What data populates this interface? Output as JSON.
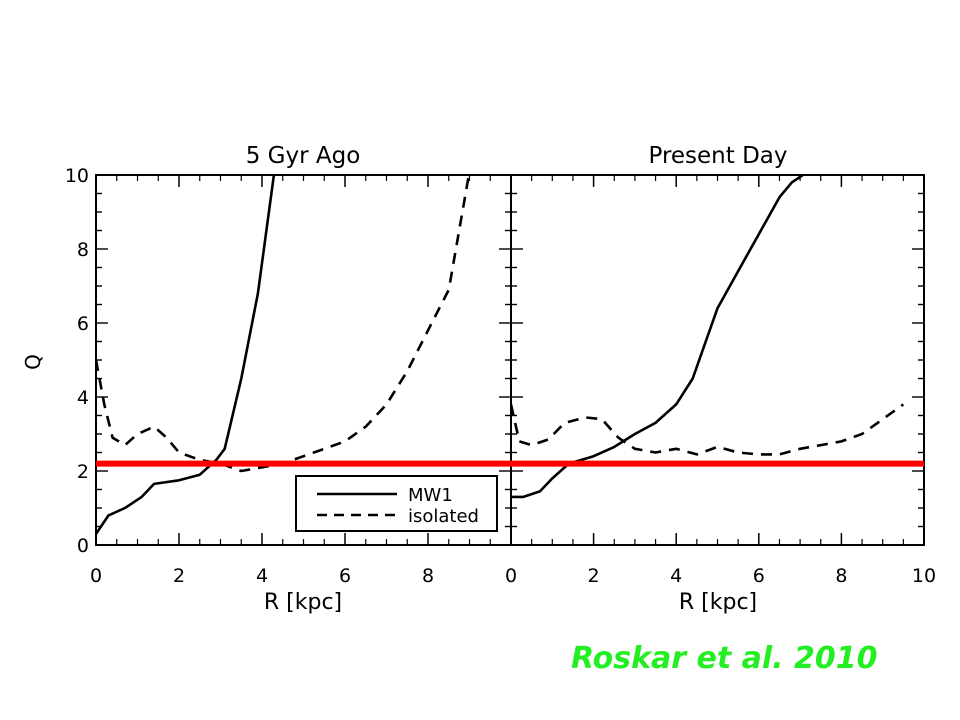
{
  "chart_data": [
    {
      "type": "line",
      "title": "5 Gyr Ago",
      "xlabel": "R [kpc]",
      "ylabel": "Q",
      "xlim": [
        0,
        10
      ],
      "ylim": [
        0,
        10
      ],
      "xticks": [
        "0",
        "2",
        "4",
        "6",
        "8"
      ],
      "yticks": [
        "0",
        "2",
        "4",
        "6",
        "8",
        "10"
      ],
      "reference_line": {
        "y": 2.2,
        "color": "#ff0000"
      },
      "legend": {
        "placement": "bottom-right",
        "entries": [
          "MW1",
          "isolated"
        ]
      },
      "series": [
        {
          "name": "MW1",
          "style": "solid",
          "x": [
            0.0,
            0.3,
            0.7,
            1.1,
            1.4,
            2.0,
            2.5,
            2.9,
            3.1,
            3.5,
            3.9,
            4.3
          ],
          "y": [
            0.3,
            0.8,
            1.0,
            1.3,
            1.65,
            1.75,
            1.9,
            2.3,
            2.6,
            4.5,
            6.8,
            10.1
          ]
        },
        {
          "name": "isolated",
          "style": "dashed",
          "x": [
            0.0,
            0.2,
            0.4,
            0.7,
            1.0,
            1.4,
            1.7,
            2.0,
            2.5,
            3.0,
            3.5,
            4.0,
            4.5,
            5.0,
            5.5,
            6.0,
            6.5,
            7.0,
            7.5,
            8.0,
            8.5,
            9.0
          ],
          "y": [
            5.0,
            3.8,
            2.9,
            2.7,
            3.0,
            3.2,
            2.9,
            2.5,
            2.3,
            2.2,
            2.0,
            2.1,
            2.2,
            2.4,
            2.6,
            2.8,
            3.2,
            3.8,
            4.7,
            5.8,
            6.9,
            10.1
          ]
        }
      ]
    },
    {
      "type": "line",
      "title": "Present Day",
      "xlabel": "R [kpc]",
      "ylabel": "",
      "xlim": [
        0,
        10
      ],
      "ylim": [
        0,
        10
      ],
      "xticks": [
        "0",
        "2",
        "4",
        "6",
        "8",
        "10"
      ],
      "yticks": [],
      "reference_line": {
        "y": 2.2,
        "color": "#ff0000"
      },
      "series": [
        {
          "name": "MW1",
          "style": "solid",
          "x": [
            0.0,
            0.3,
            0.7,
            1.0,
            1.4,
            2.0,
            2.5,
            3.0,
            3.5,
            4.0,
            4.4,
            5.0,
            5.5,
            6.0,
            6.5,
            6.8,
            7.2,
            7.6
          ],
          "y": [
            1.3,
            1.3,
            1.45,
            1.8,
            2.2,
            2.4,
            2.65,
            3.0,
            3.3,
            3.8,
            4.5,
            6.4,
            7.4,
            8.4,
            9.4,
            9.8,
            10.1,
            10.1
          ]
        },
        {
          "name": "isolated",
          "style": "dashed",
          "x": [
            0.0,
            0.2,
            0.5,
            0.9,
            1.3,
            1.8,
            2.2,
            2.6,
            3.0,
            3.5,
            4.0,
            4.5,
            5.0,
            5.5,
            6.0,
            6.5,
            7.0,
            7.5,
            8.0,
            8.5,
            9.0,
            9.5
          ],
          "y": [
            3.8,
            2.8,
            2.7,
            2.85,
            3.3,
            3.45,
            3.4,
            2.9,
            2.6,
            2.5,
            2.6,
            2.45,
            2.65,
            2.5,
            2.45,
            2.45,
            2.6,
            2.7,
            2.8,
            3.0,
            3.4,
            3.8
          ]
        }
      ]
    }
  ],
  "credit": "Roskar et al. 2010"
}
